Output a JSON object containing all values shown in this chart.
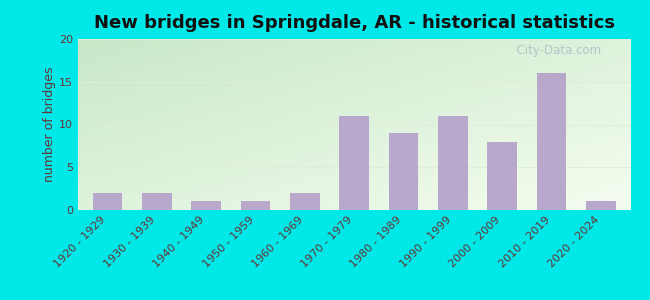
{
  "title": "New bridges in Springdale, AR - historical statistics",
  "ylabel": "number of bridges",
  "categories": [
    "1920 - 1929",
    "1930 - 1939",
    "1940 - 1949",
    "1950 - 1959",
    "1960 - 1969",
    "1970 - 1979",
    "1980 - 1989",
    "1990 - 1999",
    "2000 - 2009",
    "2010 - 2019",
    "2020 - 2024"
  ],
  "values": [
    2,
    2,
    1,
    1,
    2,
    11,
    9,
    11,
    8,
    16,
    1
  ],
  "bar_color": "#b8a8cc",
  "ylim": [
    0,
    20
  ],
  "yticks": [
    0,
    5,
    10,
    15,
    20
  ],
  "bg_top_left": "#c8e8c8",
  "bg_bottom_right": "#f5fdf0",
  "outer_background": "#00e8e8",
  "title_fontsize": 13,
  "axis_label_fontsize": 9,
  "tick_fontsize": 8,
  "watermark_text": "  City-Data.com",
  "watermark_color": "#b0bec5",
  "title_color": "#111111",
  "ylabel_color": "#663333",
  "tick_label_color": "#663333",
  "grid_color": "#e0eed8",
  "bar_width": 0.6
}
